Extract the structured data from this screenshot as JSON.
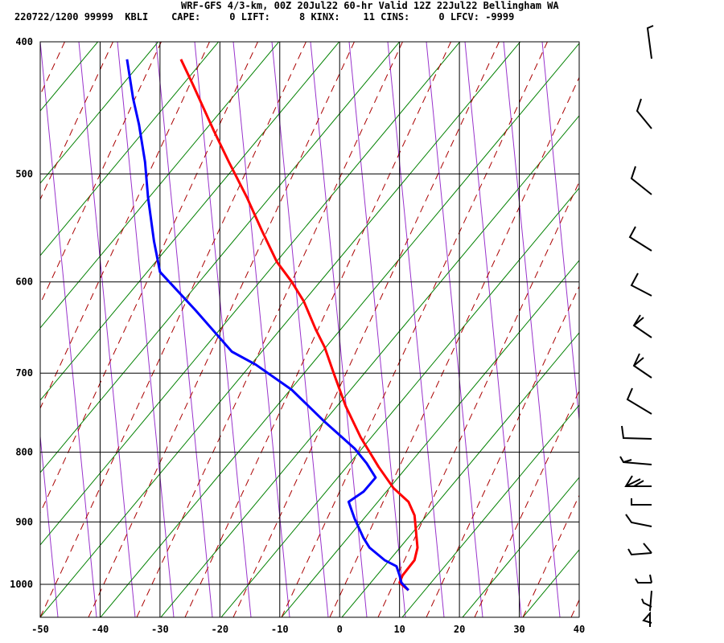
{
  "header": {
    "line1": "WRF-GFS 4/3-km, 00Z 20Jul22 60-hr Valid 12Z 22Jul22 Bellingham WA",
    "line2": "220722/1200 99999  KBLI    CAPE:     0 LIFT:     8 KINX:    11 CINS:     0 LFCV: -9999"
  },
  "chart_data": {
    "type": "line",
    "title": "",
    "xlabel": "",
    "ylabel": "",
    "xlim": [
      -50,
      40
    ],
    "ylim": [
      1050,
      400
    ],
    "y_scale": "log",
    "x_ticks": [
      -50,
      -40,
      -30,
      -20,
      -10,
      0,
      10,
      20,
      30,
      40
    ],
    "x_tick_labels": [
      "-50",
      "-40",
      "-30",
      "-20",
      "-10",
      "0",
      "10",
      "20",
      "30",
      "40"
    ],
    "y_ticks": [
      400,
      500,
      600,
      700,
      800,
      900,
      1000
    ],
    "y_tick_labels": [
      "400",
      "500",
      "600",
      "700",
      "800",
      "900",
      "1000"
    ],
    "grid": true,
    "colors": {
      "temperature": "#ff0000",
      "dewpoint": "#0000ff",
      "dry_adiabat": "#008000",
      "moist_adiabat": "#aa0000",
      "isotherm_slanted": "#9933cc"
    },
    "series": [
      {
        "key": "temperature",
        "points": [
          [
            11.5,
            1010
          ],
          [
            10,
            997
          ],
          [
            10.5,
            985
          ],
          [
            12.5,
            960
          ],
          [
            13,
            940
          ],
          [
            12.7,
            910
          ],
          [
            12.5,
            890
          ],
          [
            11.5,
            870
          ],
          [
            9,
            850
          ],
          [
            6.5,
            820
          ],
          [
            3.5,
            780
          ],
          [
            1,
            740
          ],
          [
            -1,
            700
          ],
          [
            -2.5,
            670
          ],
          [
            -4,
            650
          ],
          [
            -6,
            620
          ],
          [
            -8,
            600
          ],
          [
            -10.5,
            580
          ],
          [
            -13,
            550
          ],
          [
            -15.5,
            520
          ],
          [
            -18.5,
            490
          ],
          [
            -21,
            465
          ],
          [
            -24.5,
            430
          ],
          [
            -26.5,
            412
          ]
        ]
      },
      {
        "key": "dewpoint",
        "points": [
          [
            11.5,
            1010
          ],
          [
            10.3,
            997
          ],
          [
            10,
            985
          ],
          [
            9.5,
            970
          ],
          [
            7.5,
            960
          ],
          [
            5,
            940
          ],
          [
            4,
            925
          ],
          [
            2.5,
            895
          ],
          [
            1.5,
            870
          ],
          [
            4,
            855
          ],
          [
            6,
            835
          ],
          [
            4.5,
            815
          ],
          [
            2.5,
            795
          ],
          [
            -2.5,
            760
          ],
          [
            -8,
            720
          ],
          [
            -14,
            690
          ],
          [
            -18,
            675
          ],
          [
            -24,
            630
          ],
          [
            -30,
            590
          ],
          [
            -31,
            560
          ],
          [
            -32,
            520
          ],
          [
            -32.5,
            490
          ],
          [
            -33.5,
            460
          ],
          [
            -34.5,
            440
          ],
          [
            -35.5,
            412
          ]
        ]
      }
    ],
    "wind_barbs": "right-side profile"
  }
}
